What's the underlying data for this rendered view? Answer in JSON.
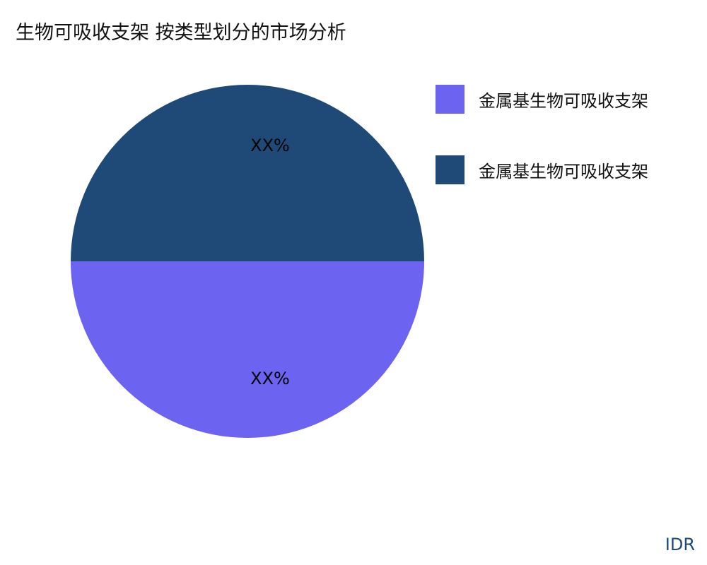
{
  "chart_data": {
    "type": "pie",
    "title": "生物可吸收支架 按类型划分的市场分析",
    "categories": [
      "金属基生物可吸收支架",
      "金属基生物可吸收支架"
    ],
    "values": [
      50,
      50
    ],
    "data_labels": [
      "XX%",
      "XX%"
    ],
    "colors": [
      "#6c63f0",
      "#1f4a78"
    ],
    "legend_position": "right"
  },
  "brand": "IDR"
}
